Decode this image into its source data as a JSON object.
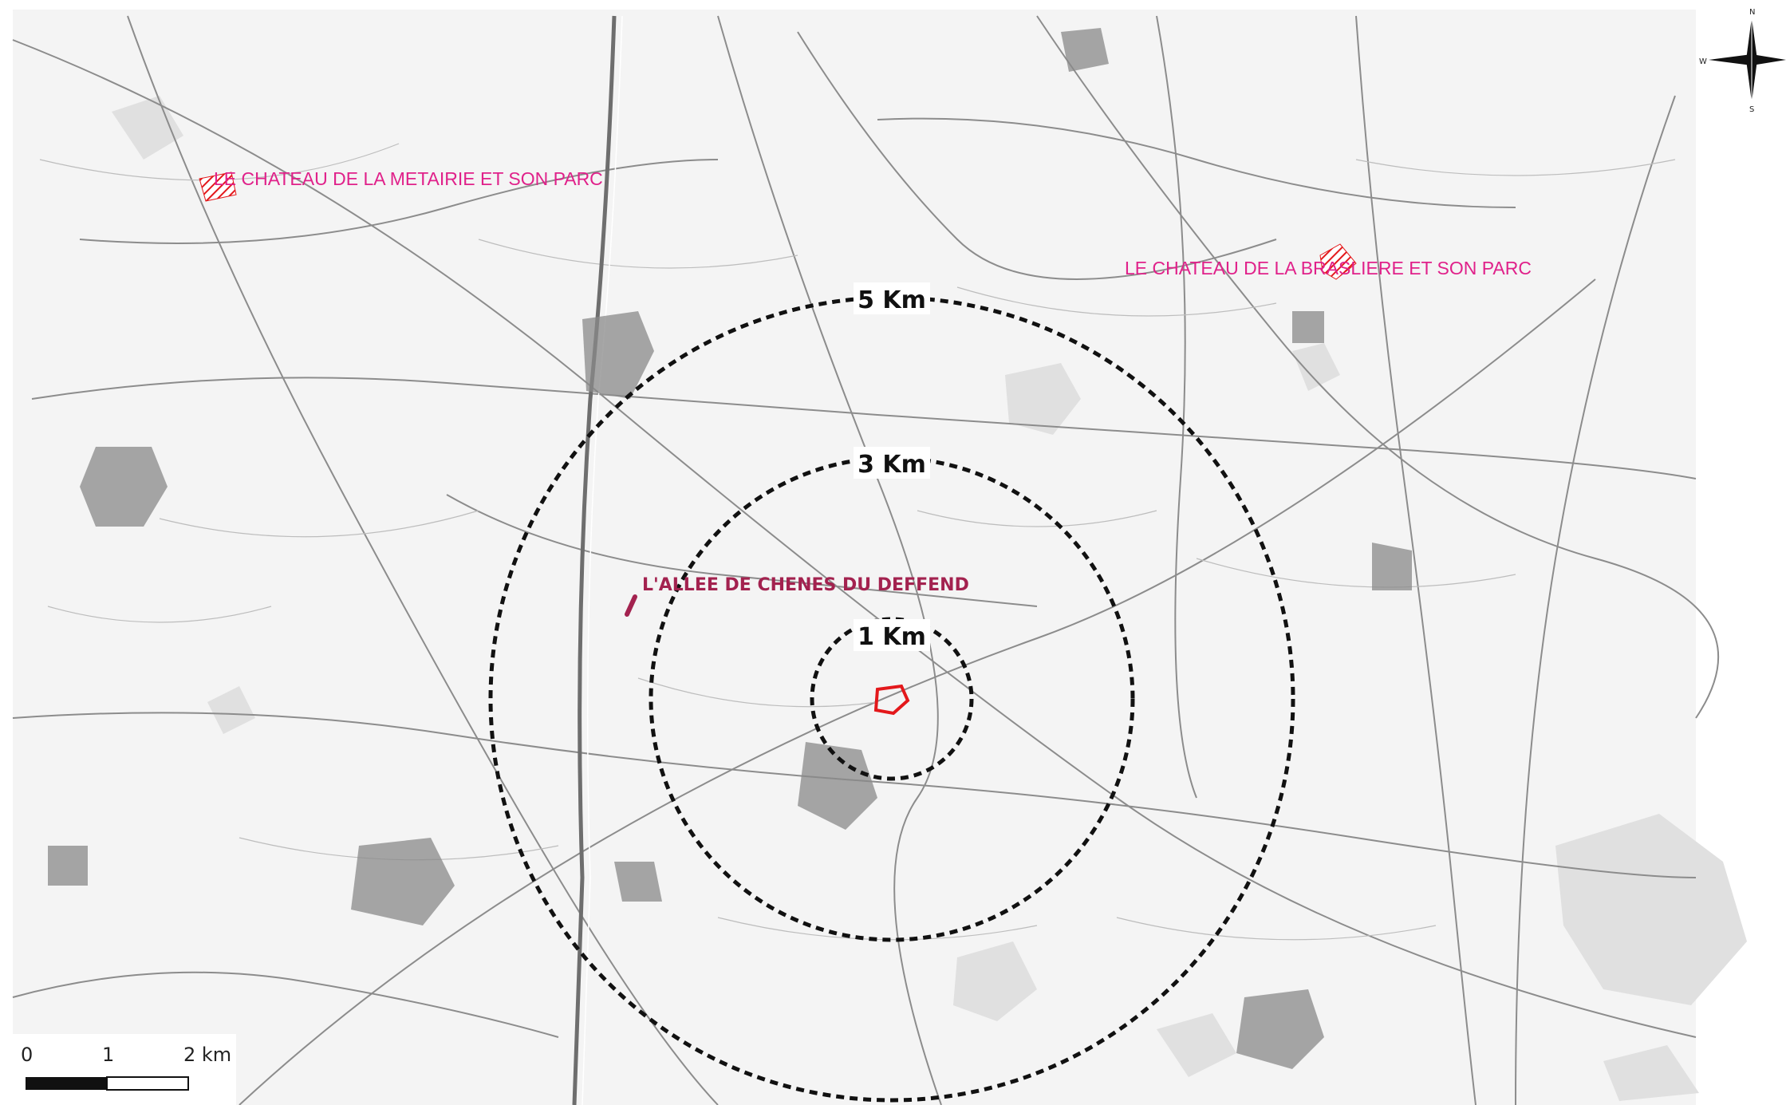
{
  "map": {
    "rings": [
      {
        "id": "ring-1km",
        "label": "1 Km"
      },
      {
        "id": "ring-3km",
        "label": "3 Km"
      },
      {
        "id": "ring-5km",
        "label": "5 Km"
      }
    ],
    "sites": [
      {
        "id": "chateau-metairie",
        "label": "LE CHATEAU DE LA METAIRIE ET SON PARC",
        "color": "#e0218a"
      },
      {
        "id": "chateau-brasliere",
        "label": "LE CHATEAU DE LA BRASLIERE ET SON PARC",
        "color": "#e0218a"
      },
      {
        "id": "allee-chenes",
        "label": "L'ALLEE DE CHENES DU DEFFEND",
        "color": "#a3224f"
      }
    ],
    "project_site_color": "#e3181b",
    "ring_color": "#111111",
    "scale_bar": {
      "ticks": [
        "0",
        "1",
        "2 km"
      ]
    },
    "compass": {
      "n": "N",
      "s": "S",
      "w": "W"
    }
  }
}
